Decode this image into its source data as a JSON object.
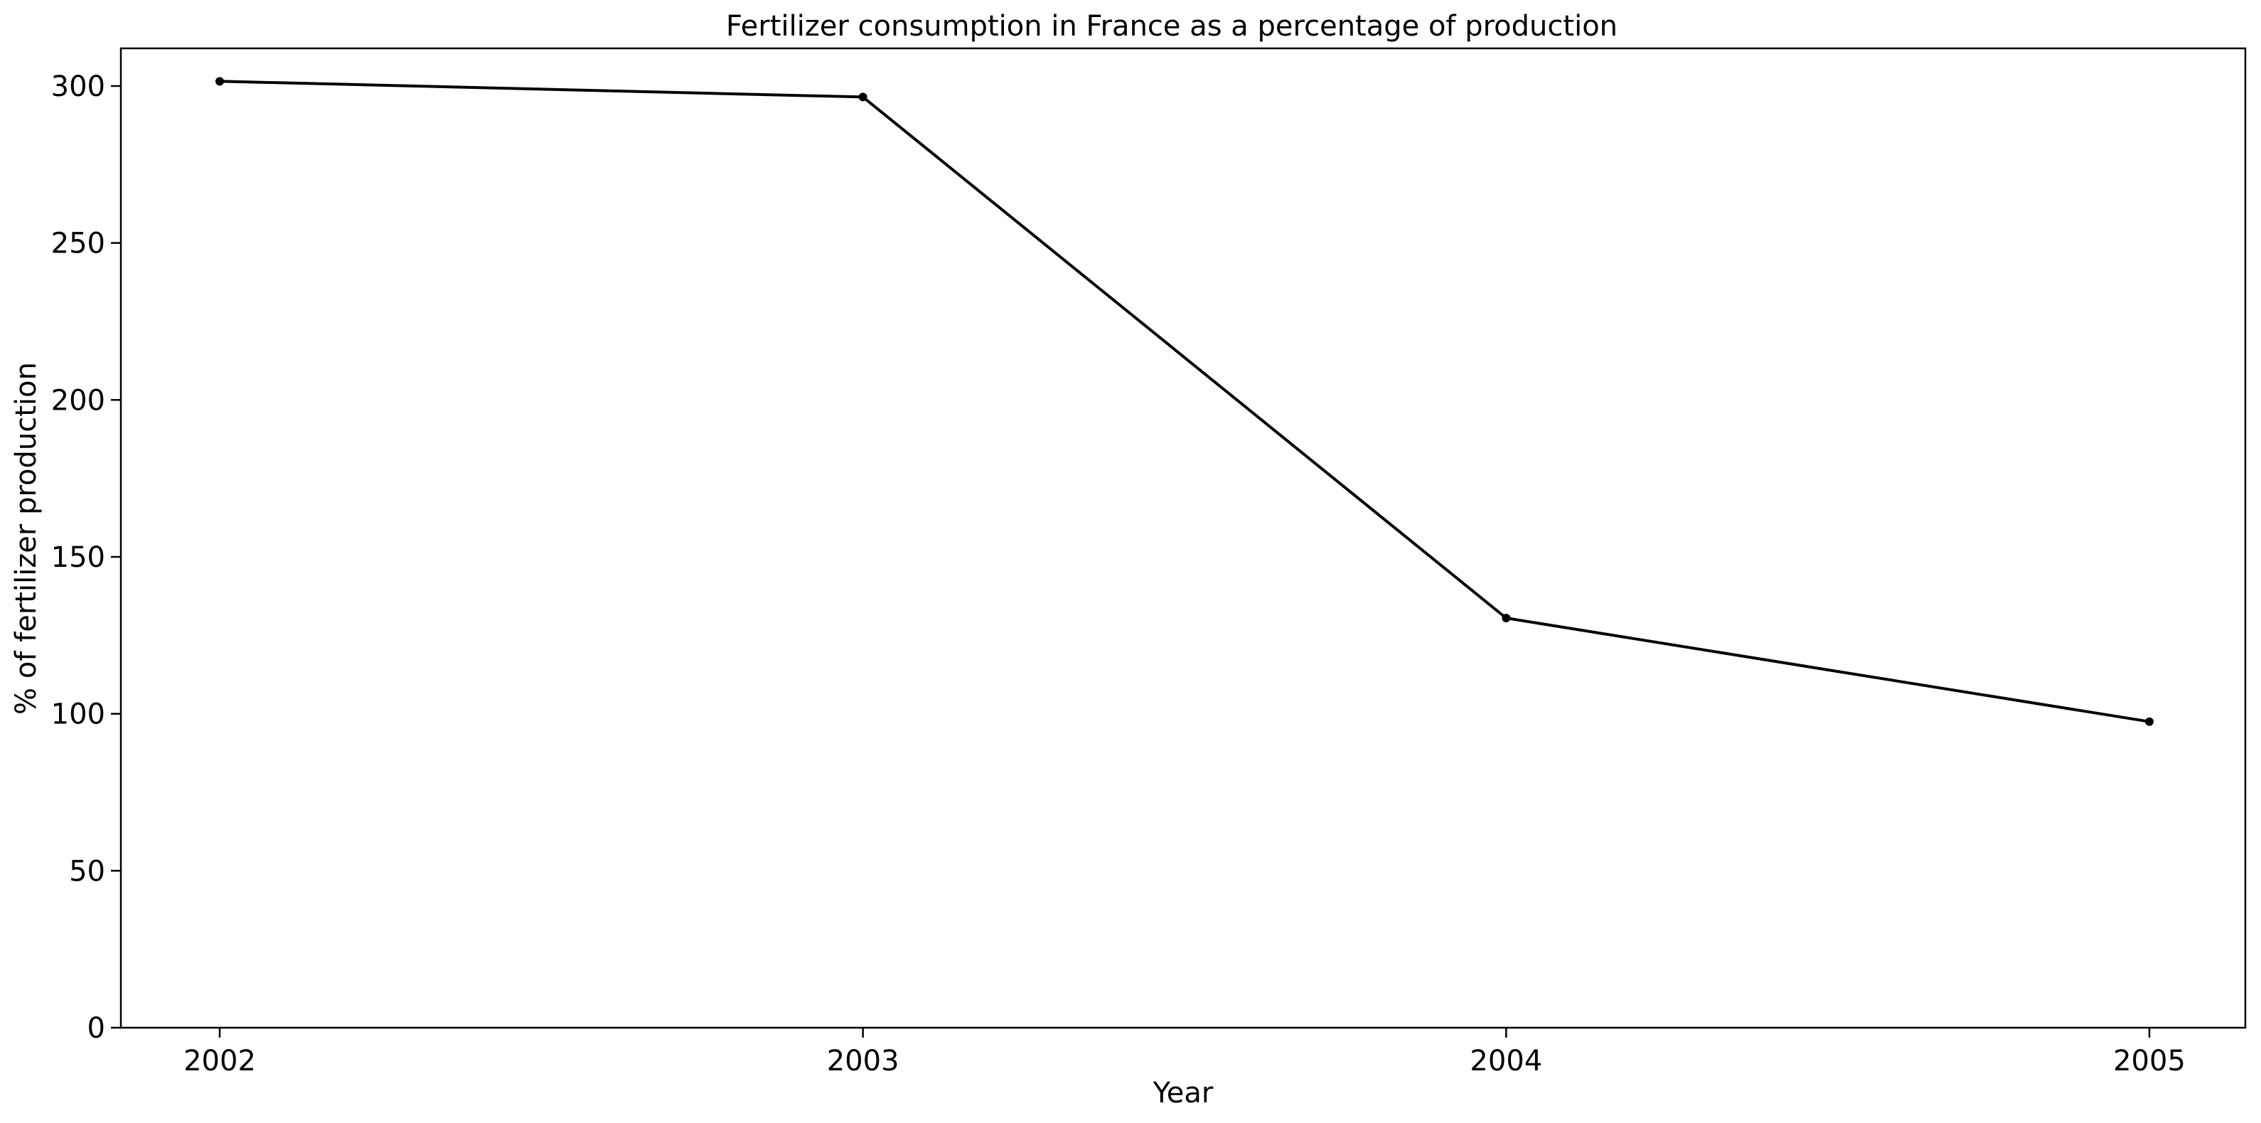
{
  "chart_data": {
    "type": "line",
    "title": "Fertilizer consumption in France as a percentage of production",
    "xlabel": "Year",
    "ylabel": "% of fertilizer production",
    "categories": [
      "2002",
      "2003",
      "2004",
      "2005"
    ],
    "series": [
      {
        "values": [
          301.5,
          296.5,
          130.5,
          97.5
        ],
        "color": "#000000",
        "marker": "dot"
      }
    ],
    "ylim": [
      0,
      312
    ],
    "yticks": [
      0,
      50,
      100,
      150,
      200,
      250,
      300
    ],
    "grid": false,
    "legend": "none"
  }
}
